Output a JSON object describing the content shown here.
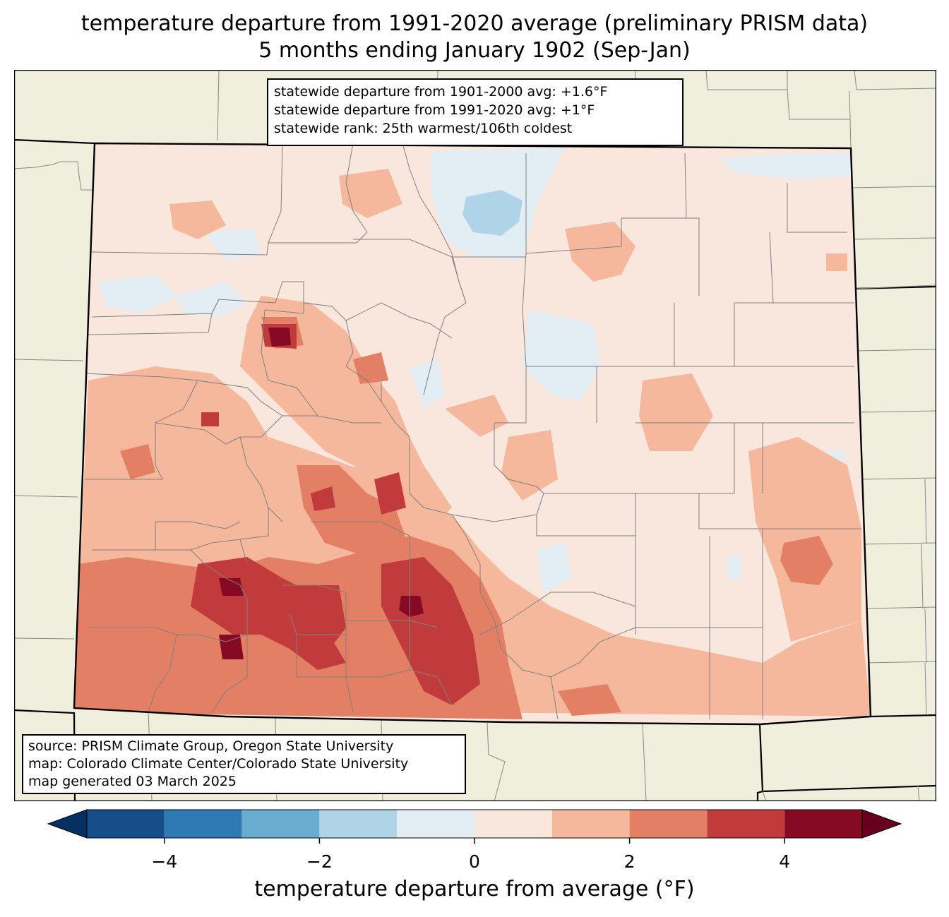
{
  "title": {
    "line1": "temperature departure from 1991-2020 average (preliminary PRISM data)",
    "line2": "5 months ending January 1902 (Sep-Jan)"
  },
  "stats": [
    "statewide departure from 1901-2000 avg: +1.6°F",
    "statewide departure from 1991-2020 avg: +1°F",
    "statewide rank: 25th warmest/106th coldest"
  ],
  "source": [
    "source: PRISM Climate Group, Oregon State University",
    "map: Colorado Climate Center/Colorado State University",
    "map generated 03 March 2025"
  ],
  "colorbar": {
    "label": "temperature departure from average (°F)",
    "min": -5,
    "max": 5,
    "ticks": [
      -4,
      -2,
      0,
      2,
      4
    ],
    "tick_labels": [
      "−4",
      "−2",
      "0",
      "2",
      "4"
    ],
    "colors": [
      "#053061",
      "#164e8a",
      "#2f79b5",
      "#6aacd0",
      "#b0d4e7",
      "#e3edf4",
      "#f9e6dc",
      "#f6b89c",
      "#e27f64",
      "#c13b3c",
      "#870a24",
      "#67001f"
    ],
    "extend": "both"
  },
  "colors": {
    "land_outside": "#f0eedc",
    "state_border": "#000000",
    "county_border": "#808080"
  }
}
